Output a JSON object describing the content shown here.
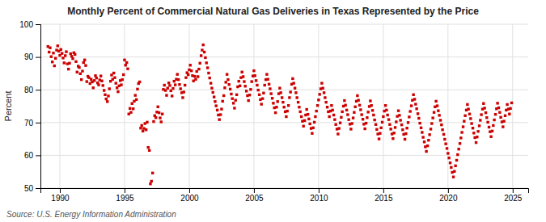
{
  "chart_data": {
    "type": "scatter",
    "title": "Monthly Percent of Commercial Natural Gas Deliveries in Texas Represented by the Price",
    "ylabel": "Percent",
    "annotations": [
      "Source: U.S. Energy Information Administration"
    ],
    "color": "#cc0000",
    "marker": "square",
    "grid": true,
    "xlim": [
      1988.5,
      2026.2
    ],
    "xticks": [
      1990,
      1995,
      2000,
      2005,
      2010,
      2015,
      2020,
      2025
    ],
    "ylim": [
      50,
      100
    ],
    "yticks": [
      50,
      60,
      70,
      80,
      90,
      100
    ],
    "x": [
      1989.08,
      1989.17,
      1989.25,
      1989.33,
      1989.42,
      1989.5,
      1989.58,
      1989.67,
      1989.75,
      1989.83,
      1989.92,
      1990.0,
      1990.08,
      1990.17,
      1990.25,
      1990.33,
      1990.42,
      1990.5,
      1990.58,
      1990.67,
      1990.75,
      1990.83,
      1990.92,
      1991.0,
      1991.08,
      1991.17,
      1991.25,
      1991.33,
      1991.42,
      1991.5,
      1991.58,
      1991.67,
      1991.75,
      1991.83,
      1991.92,
      1992.0,
      1992.08,
      1992.17,
      1992.25,
      1992.33,
      1992.42,
      1992.5,
      1992.58,
      1992.67,
      1992.75,
      1992.83,
      1992.92,
      1993.0,
      1993.08,
      1993.17,
      1993.25,
      1993.33,
      1993.42,
      1993.5,
      1993.58,
      1993.67,
      1993.75,
      1993.83,
      1993.92,
      1994.0,
      1994.08,
      1994.17,
      1994.25,
      1994.33,
      1994.42,
      1994.5,
      1994.58,
      1994.67,
      1994.75,
      1994.83,
      1994.92,
      1995.0,
      1995.08,
      1995.17,
      1995.25,
      1995.33,
      1995.42,
      1995.5,
      1995.58,
      1995.67,
      1995.75,
      1995.83,
      1995.92,
      1996.0,
      1996.08,
      1996.17,
      1996.25,
      1996.33,
      1996.42,
      1996.5,
      1996.58,
      1996.67,
      1996.75,
      1996.83,
      1996.92,
      1997.0,
      1997.08,
      1997.17,
      1997.25,
      1997.33,
      1997.42,
      1997.5,
      1997.58,
      1997.67,
      1997.75,
      1997.83,
      1997.92,
      1998.0,
      1998.08,
      1998.17,
      1998.25,
      1998.33,
      1998.42,
      1998.5,
      1998.58,
      1998.67,
      1998.75,
      1998.83,
      1998.92,
      1999.0,
      1999.08,
      1999.17,
      1999.25,
      1999.33,
      1999.42,
      1999.5,
      1999.58,
      1999.67,
      1999.75,
      1999.83,
      1999.92,
      2000.0,
      2000.08,
      2000.17,
      2000.25,
      2000.33,
      2000.42,
      2000.5,
      2000.58,
      2000.67,
      2000.75,
      2000.83,
      2000.92,
      2001.0,
      2001.08,
      2001.17,
      2001.25,
      2001.33,
      2001.42,
      2001.5,
      2001.58,
      2001.67,
      2001.75,
      2001.83,
      2001.92,
      2002.0,
      2002.08,
      2002.17,
      2002.25,
      2002.33,
      2002.42,
      2002.5,
      2002.58,
      2002.67,
      2002.75,
      2002.83,
      2002.92,
      2003.0,
      2003.08,
      2003.17,
      2003.25,
      2003.33,
      2003.42,
      2003.5,
      2003.58,
      2003.67,
      2003.75,
      2003.83,
      2003.92,
      2004.0,
      2004.08,
      2004.17,
      2004.25,
      2004.33,
      2004.42,
      2004.5,
      2004.58,
      2004.67,
      2004.75,
      2004.83,
      2004.92,
      2005.0,
      2005.08,
      2005.17,
      2005.25,
      2005.33,
      2005.42,
      2005.5,
      2005.58,
      2005.67,
      2005.75,
      2005.83,
      2005.92,
      2006.0,
      2006.08,
      2006.17,
      2006.25,
      2006.33,
      2006.42,
      2006.5,
      2006.58,
      2006.67,
      2006.75,
      2006.83,
      2006.92,
      2007.0,
      2007.08,
      2007.17,
      2007.25,
      2007.33,
      2007.42,
      2007.5,
      2007.58,
      2007.67,
      2007.75,
      2007.83,
      2007.92,
      2008.0,
      2008.08,
      2008.17,
      2008.25,
      2008.33,
      2008.42,
      2008.5,
      2008.58,
      2008.67,
      2008.75,
      2008.83,
      2008.92,
      2009.0,
      2009.08,
      2009.17,
      2009.25,
      2009.33,
      2009.42,
      2009.5,
      2009.58,
      2009.67,
      2009.75,
      2009.83,
      2009.92,
      2010.0,
      2010.08,
      2010.17,
      2010.25,
      2010.33,
      2010.42,
      2010.5,
      2010.58,
      2010.67,
      2010.75,
      2010.83,
      2010.92,
      2011.0,
      2011.08,
      2011.17,
      2011.25,
      2011.33,
      2011.42,
      2011.5,
      2011.58,
      2011.67,
      2011.75,
      2011.83,
      2011.92,
      2012.0,
      2012.08,
      2012.17,
      2012.25,
      2012.33,
      2012.42,
      2012.5,
      2012.58,
      2012.67,
      2012.75,
      2012.83,
      2012.92,
      2013.0,
      2013.08,
      2013.17,
      2013.25,
      2013.33,
      2013.42,
      2013.5,
      2013.58,
      2013.67,
      2013.75,
      2013.83,
      2013.92,
      2014.0,
      2014.08,
      2014.17,
      2014.25,
      2014.33,
      2014.42,
      2014.5,
      2014.58,
      2014.67,
      2014.75,
      2014.83,
      2014.92,
      2015.0,
      2015.08,
      2015.17,
      2015.25,
      2015.33,
      2015.42,
      2015.5,
      2015.58,
      2015.67,
      2015.75,
      2015.83,
      2015.92,
      2016.0,
      2016.08,
      2016.17,
      2016.25,
      2016.33,
      2016.42,
      2016.5,
      2016.58,
      2016.67,
      2016.75,
      2016.83,
      2016.92,
      2017.0,
      2017.08,
      2017.17,
      2017.25,
      2017.33,
      2017.42,
      2017.5,
      2017.58,
      2017.67,
      2017.75,
      2017.83,
      2017.92,
      2018.0,
      2018.08,
      2018.17,
      2018.25,
      2018.33,
      2018.42,
      2018.5,
      2018.58,
      2018.67,
      2018.75,
      2018.83,
      2018.92,
      2019.0,
      2019.08,
      2019.17,
      2019.25,
      2019.33,
      2019.42,
      2019.5,
      2019.58,
      2019.67,
      2019.75,
      2019.83,
      2019.92,
      2020.0,
      2020.08,
      2020.17,
      2020.25,
      2020.33,
      2020.42,
      2020.5,
      2020.58,
      2020.67,
      2020.75,
      2020.83,
      2020.92,
      2021.0,
      2021.08,
      2021.17,
      2021.25,
      2021.33,
      2021.42,
      2021.5,
      2021.58,
      2021.67,
      2021.75,
      2021.83,
      2021.92,
      2022.0,
      2022.08,
      2022.17,
      2022.25,
      2022.33,
      2022.42,
      2022.5,
      2022.58,
      2022.67,
      2022.75,
      2022.83,
      2022.92,
      2023.0,
      2023.08,
      2023.17,
      2023.25,
      2023.33,
      2023.42,
      2023.5,
      2023.58,
      2023.67,
      2023.75,
      2023.83,
      2023.92,
      2024.0,
      2024.08,
      2024.17,
      2024.25,
      2024.33,
      2024.42,
      2024.5,
      2024.58,
      2024.67,
      2024.75,
      2024.83,
      2024.92
    ],
    "values": [
      93.2,
      91.5,
      92.8,
      90.1,
      88.5,
      91.2,
      87.3,
      89.6,
      92.1,
      93.4,
      91.8,
      90.5,
      92.3,
      91.1,
      89.7,
      88.2,
      90.4,
      91.6,
      87.9,
      86.3,
      88.1,
      91.0,
      90.2,
      89.5,
      91.3,
      90.8,
      88.6,
      85.4,
      87.2,
      86.8,
      84.9,
      83.1,
      85.7,
      88.3,
      89.1,
      87.4,
      82.5,
      84.1,
      83.7,
      81.9,
      83.2,
      82.4,
      80.6,
      82.8,
      84.3,
      83.6,
      82.1,
      81.5,
      83.0,
      84.2,
      82.7,
      81.3,
      79.8,
      78.5,
      77.2,
      76.4,
      78.1,
      80.3,
      82.6,
      84.5,
      83.2,
      85.1,
      83.7,
      82.0,
      80.6,
      79.4,
      81.2,
      82.8,
      81.5,
      83.1,
      84.6,
      89.1,
      87.5,
      88.3,
      86.4,
      72.6,
      74.3,
      73.1,
      75.8,
      74.2,
      76.5,
      78.3,
      77.0,
      80.2,
      81.9,
      82.4,
      68.3,
      69.1,
      67.4,
      68.2,
      69.7,
      67.8,
      70.1,
      62.4,
      61.5,
      51.3,
      52.1,
      54.6,
      70.3,
      72.1,
      71.5,
      73.2,
      74.8,
      73.0,
      71.4,
      70.2,
      72.6,
      80.1,
      81.4,
      79.8,
      78.3,
      80.5,
      82.1,
      81.3,
      79.7,
      78.1,
      80.4,
      82.6,
      81.5,
      83.2,
      84.7,
      83.1,
      81.6,
      80.3,
      79.1,
      77.6,
      79.3,
      81.4,
      83.7,
      85.2,
      84.6,
      86.1,
      87.5,
      85.8,
      84.3,
      82.7,
      84.1,
      83.2,
      85.6,
      84.0,
      86.3,
      88.1,
      90.4,
      92.1,
      93.7,
      91.5,
      89.8,
      88.2,
      86.7,
      85.1,
      83.6,
      82.0,
      80.5,
      79.2,
      77.8,
      76.4,
      75.1,
      73.8,
      72.3,
      70.9,
      72.4,
      74.1,
      76.5,
      78.2,
      80.6,
      82.3,
      84.7,
      83.1,
      81.6,
      80.2,
      78.7,
      77.3,
      75.9,
      74.4,
      76.8,
      78.5,
      80.9,
      82.6,
      81.2,
      83.7,
      85.4,
      84.0,
      82.5,
      81.1,
      79.6,
      78.2,
      76.7,
      78.4,
      80.1,
      82.5,
      84.2,
      85.8,
      84.3,
      82.8,
      81.4,
      79.9,
      78.5,
      77.0,
      75.6,
      77.3,
      79.0,
      81.4,
      83.1,
      84.7,
      83.2,
      81.7,
      80.3,
      78.8,
      77.4,
      75.9,
      74.5,
      73.0,
      74.7,
      76.4,
      78.8,
      80.5,
      79.1,
      77.6,
      76.2,
      74.7,
      73.3,
      71.8,
      73.5,
      75.2,
      77.6,
      79.3,
      81.7,
      83.4,
      82.0,
      80.5,
      79.1,
      77.6,
      76.2,
      74.7,
      73.3,
      71.8,
      70.4,
      68.9,
      70.6,
      72.3,
      74.0,
      72.5,
      71.1,
      69.6,
      68.2,
      66.7,
      68.4,
      70.1,
      71.8,
      73.5,
      75.2,
      76.9,
      78.6,
      80.3,
      82.0,
      80.5,
      79.1,
      77.6,
      76.2,
      74.7,
      73.3,
      71.8,
      73.5,
      75.2,
      73.8,
      72.3,
      70.9,
      69.4,
      68.0,
      66.5,
      68.2,
      69.9,
      71.6,
      73.3,
      75.0,
      76.7,
      75.3,
      73.8,
      72.4,
      70.9,
      69.5,
      68.0,
      69.7,
      71.4,
      73.1,
      74.8,
      76.5,
      78.2,
      76.8,
      75.3,
      73.9,
      72.4,
      71.0,
      69.5,
      68.1,
      69.8,
      71.5,
      73.2,
      74.9,
      76.6,
      75.2,
      73.7,
      72.3,
      70.8,
      69.4,
      67.9,
      66.5,
      65.0,
      66.7,
      68.4,
      70.1,
      71.8,
      73.5,
      75.2,
      73.8,
      72.3,
      70.9,
      69.4,
      68.0,
      66.5,
      65.1,
      66.8,
      68.5,
      70.2,
      71.9,
      73.6,
      72.2,
      70.7,
      69.3,
      67.8,
      66.4,
      64.9,
      66.6,
      68.3,
      70.0,
      71.7,
      73.4,
      75.1,
      76.8,
      78.5,
      77.1,
      75.6,
      74.2,
      72.7,
      71.3,
      69.8,
      68.4,
      67.0,
      65.5,
      64.1,
      62.6,
      61.2,
      62.9,
      64.6,
      66.3,
      68.0,
      69.7,
      71.4,
      73.1,
      74.8,
      76.5,
      75.1,
      73.6,
      72.2,
      70.7,
      69.3,
      67.8,
      66.4,
      64.9,
      63.5,
      62.1,
      60.6,
      59.2,
      57.7,
      56.3,
      54.8,
      53.4,
      55.1,
      56.8,
      58.5,
      60.2,
      61.9,
      63.6,
      65.3,
      67.0,
      68.7,
      70.4,
      72.1,
      73.8,
      75.5,
      74.1,
      72.6,
      71.2,
      69.7,
      68.3,
      66.8,
      65.4,
      63.9,
      65.6,
      67.3,
      69.0,
      70.7,
      72.4,
      74.1,
      75.8,
      74.4,
      73.0,
      71.5,
      70.1,
      68.6,
      67.2,
      65.7,
      67.4,
      69.1,
      70.8,
      72.5,
      74.2,
      75.9,
      74.5,
      73.1,
      71.6,
      70.2,
      68.7,
      70.4,
      72.1,
      73.8,
      75.5,
      74.1,
      72.6,
      74.3,
      76.0
    ]
  }
}
